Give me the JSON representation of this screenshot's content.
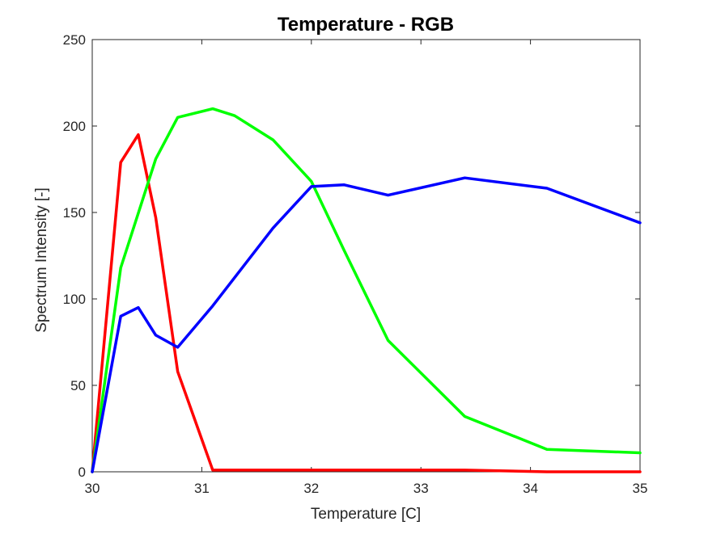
{
  "chart_data": {
    "type": "line",
    "title": "Temperature - RGB",
    "xlabel": "Temperature [C]",
    "ylabel": "Spectrum Intensity [-]",
    "xlim": [
      30,
      35
    ],
    "ylim": [
      0,
      250
    ],
    "xticks": [
      "30",
      "31",
      "32",
      "33",
      "34",
      "35"
    ],
    "yticks": [
      "0",
      "50",
      "100",
      "150",
      "200",
      "250"
    ],
    "grid": false,
    "legend": "none",
    "series": [
      {
        "color": "#ff0000",
        "x": [
          30,
          30.26,
          30.42,
          30.58,
          30.78,
          31.1,
          32.0,
          33.4,
          34.15,
          35
        ],
        "y": [
          0,
          179,
          195,
          147,
          58,
          1,
          1,
          1,
          0,
          0
        ]
      },
      {
        "color": "#00ff00",
        "x": [
          30,
          30.26,
          30.58,
          30.78,
          31.1,
          31.3,
          31.65,
          32.0,
          32.3,
          32.7,
          33.4,
          34.15,
          35
        ],
        "y": [
          0,
          118,
          181,
          205,
          210,
          206,
          192,
          168,
          128,
          76,
          32,
          13,
          11
        ]
      },
      {
        "color": "#0000ff",
        "x": [
          30,
          30.26,
          30.42,
          30.58,
          30.78,
          31.1,
          31.65,
          32.0,
          32.3,
          32.7,
          33.4,
          34.15,
          35
        ],
        "y": [
          0,
          90,
          95,
          79,
          72,
          96,
          141,
          165,
          166,
          160,
          170,
          164,
          144
        ]
      }
    ]
  }
}
